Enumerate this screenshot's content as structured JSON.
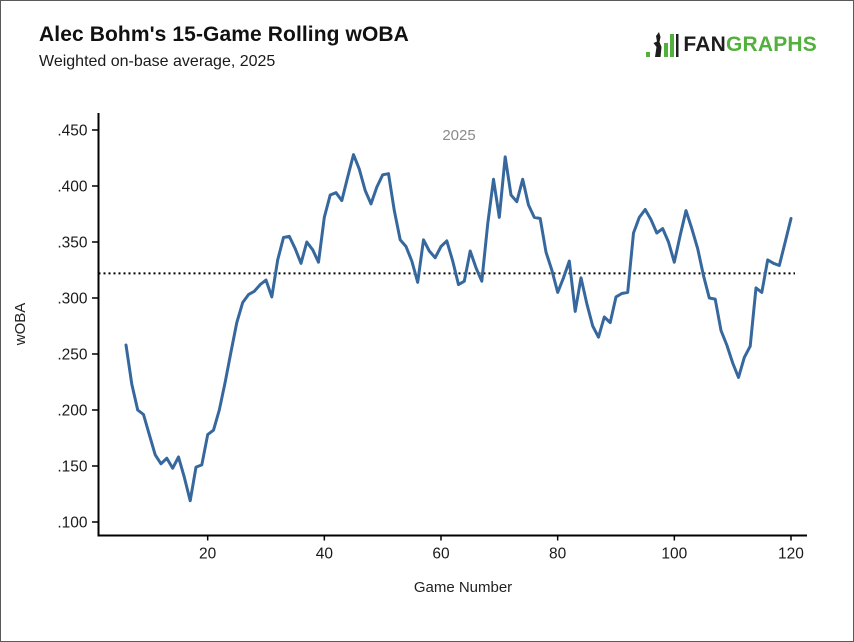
{
  "header": {
    "title": "Alec Bohm's 15-Game Rolling wOBA",
    "subtitle": "Weighted on-base average, 2025",
    "logo": {
      "fan_text": "FAN",
      "graphs_text": "GRAPHS",
      "green_color": "#52b03c",
      "dark_color": "#1d1d1d"
    }
  },
  "chart_data": {
    "type": "line",
    "title": "Alec Bohm's 15-Game Rolling wOBA",
    "subtitle": "Weighted on-base average, 2025",
    "series_label": "2025",
    "xlabel": "Game Number",
    "ylabel": "wOBA",
    "xlim": [
      1,
      122
    ],
    "ylim": [
      0.088,
      0.465
    ],
    "xticks": [
      20,
      40,
      60,
      80,
      100,
      120
    ],
    "ytick_values": [
      0.1,
      0.15,
      0.2,
      0.25,
      0.3,
      0.35,
      0.4,
      0.45
    ],
    "ytick_labels": [
      ".100",
      ".150",
      ".200",
      ".250",
      ".300",
      ".350",
      ".400",
      ".450"
    ],
    "average_line_value": 0.322,
    "grid": false,
    "legend_position": "top-center-inside",
    "line_color": "#36689e",
    "average_line_color": "#000000",
    "series_label_color": "#8a8a8a",
    "x": [
      6,
      7,
      8,
      9,
      10,
      11,
      12,
      13,
      14,
      15,
      16,
      17,
      18,
      19,
      20,
      21,
      22,
      23,
      24,
      25,
      26,
      27,
      28,
      29,
      30,
      31,
      32,
      33,
      34,
      35,
      36,
      37,
      38,
      39,
      40,
      41,
      42,
      43,
      44,
      45,
      46,
      47,
      48,
      49,
      50,
      51,
      52,
      53,
      54,
      55,
      56,
      57,
      58,
      59,
      60,
      61,
      62,
      63,
      64,
      65,
      66,
      67,
      68,
      69,
      70,
      71,
      72,
      73,
      74,
      75,
      76,
      77,
      78,
      79,
      80,
      81,
      82,
      83,
      84,
      85,
      86,
      87,
      88,
      89,
      90,
      91,
      92,
      93,
      94,
      95,
      96,
      97,
      98,
      99,
      100,
      101,
      102,
      103,
      104,
      105,
      106,
      107,
      108,
      109,
      110,
      111,
      112,
      113,
      114,
      115,
      116,
      117,
      118,
      119,
      120
    ],
    "values": [
      0.258,
      0.223,
      0.2,
      0.196,
      0.178,
      0.16,
      0.152,
      0.157,
      0.148,
      0.158,
      0.14,
      0.119,
      0.149,
      0.151,
      0.178,
      0.182,
      0.2,
      0.225,
      0.252,
      0.278,
      0.296,
      0.303,
      0.306,
      0.312,
      0.316,
      0.301,
      0.334,
      0.354,
      0.355,
      0.344,
      0.331,
      0.35,
      0.343,
      0.332,
      0.372,
      0.392,
      0.394,
      0.387,
      0.408,
      0.428,
      0.415,
      0.396,
      0.384,
      0.399,
      0.41,
      0.411,
      0.378,
      0.352,
      0.346,
      0.333,
      0.314,
      0.352,
      0.342,
      0.336,
      0.346,
      0.351,
      0.333,
      0.312,
      0.315,
      0.342,
      0.327,
      0.315,
      0.366,
      0.406,
      0.372,
      0.426,
      0.392,
      0.386,
      0.406,
      0.383,
      0.372,
      0.371,
      0.341,
      0.325,
      0.305,
      0.318,
      0.333,
      0.288,
      0.318,
      0.295,
      0.275,
      0.265,
      0.283,
      0.278,
      0.301,
      0.304,
      0.305,
      0.358,
      0.372,
      0.379,
      0.37,
      0.358,
      0.362,
      0.35,
      0.332,
      0.356,
      0.378,
      0.362,
      0.344,
      0.32,
      0.3,
      0.299,
      0.271,
      0.258,
      0.242,
      0.229,
      0.247,
      0.257,
      0.309,
      0.305,
      0.334,
      0.331,
      0.329,
      0.35,
      0.371
    ]
  }
}
